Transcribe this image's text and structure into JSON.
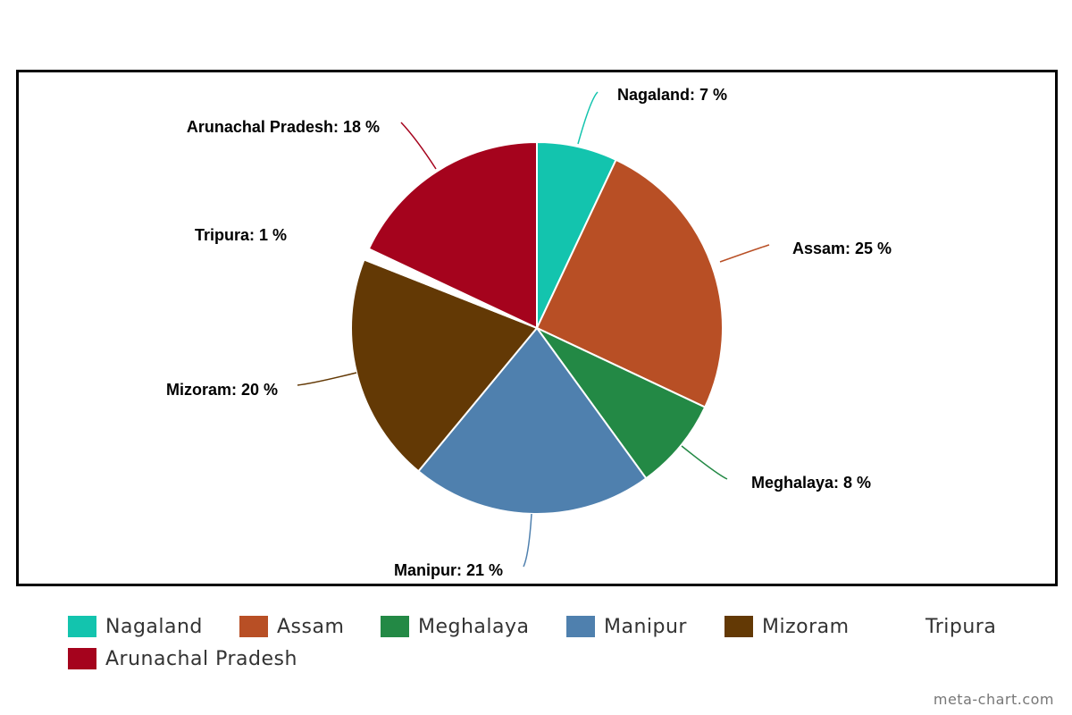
{
  "chart_data": {
    "type": "pie",
    "title": "",
    "slices": [
      {
        "name": "Nagaland",
        "value": 7,
        "label": "Nagaland: 7 %",
        "color": "#13c4ae"
      },
      {
        "name": "Assam",
        "value": 25,
        "label": "Assam: 25 %",
        "color": "#b84f25"
      },
      {
        "name": "Meghalaya",
        "value": 8,
        "label": "Meghalaya: 8 %",
        "color": "#238945"
      },
      {
        "name": "Manipur",
        "value": 21,
        "label": "Manipur: 21 %",
        "color": "#4f80ae"
      },
      {
        "name": "Mizoram",
        "value": 20,
        "label": "Mizoram: 20 %",
        "color": "#633905"
      },
      {
        "name": "Tripura",
        "value": 1,
        "label": "Tripura: 1 %",
        "color": "#ffffff"
      },
      {
        "name": "Arunachal Pradesh",
        "value": 18,
        "label": "Arunachal Pradesh: 18 %",
        "color": "#a5031d"
      }
    ],
    "legend_placement": "bottom"
  },
  "credit": "meta-chart.com"
}
